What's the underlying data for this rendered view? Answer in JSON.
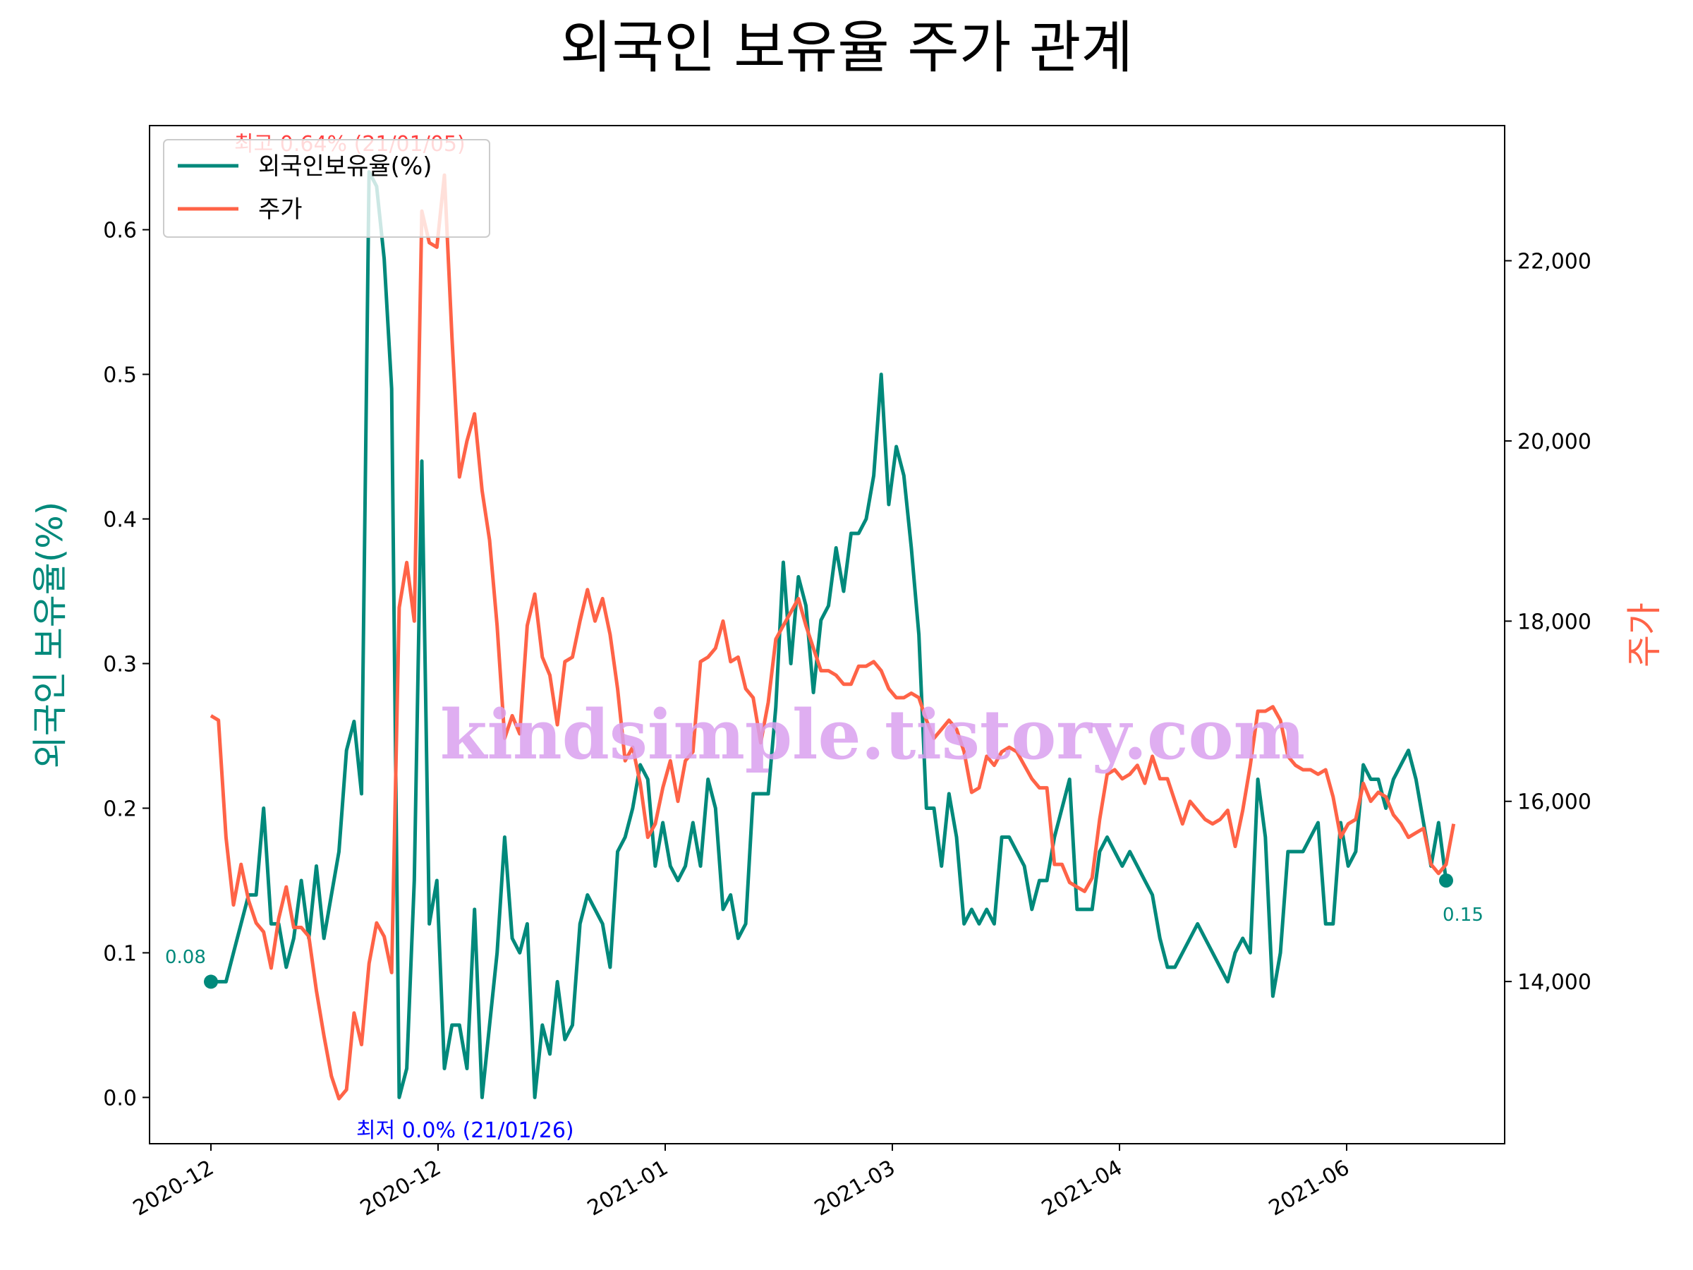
{
  "colors": {
    "ratio": "#00897b",
    "price": "#ff6347",
    "high_annotation": "#ff0000",
    "low_annotation": "#0000ff",
    "watermark": "#d9a0ee",
    "axis": "#000000"
  },
  "chart_data": {
    "type": "line",
    "title": "외국인 보유율 주가 관계",
    "ylabel_left": "외국인 보유율(%)",
    "ylabel_right": "주가",
    "x_tick_labels": [
      "2020-12",
      "2020-12",
      "2021-01",
      "2021-03",
      "2021-04",
      "2021-06"
    ],
    "y_left_ticks": [
      "0.0",
      "0.1",
      "0.2",
      "0.3",
      "0.4",
      "0.5",
      "0.6"
    ],
    "y_right_ticks": [
      "14,000",
      "16,000",
      "18,000",
      "20,000",
      "22,000"
    ],
    "ylim_left": [
      -0.032,
      0.672
    ],
    "ylim_right": [
      12200,
      23500
    ],
    "legend_position": "upper-left",
    "grid": false,
    "series": [
      {
        "name": "외국인보유율(%)",
        "axis": "left",
        "values": [
          0.08,
          0.08,
          0.08,
          0.1,
          0.12,
          0.14,
          0.14,
          0.2,
          0.12,
          0.12,
          0.09,
          0.11,
          0.15,
          0.11,
          0.16,
          0.11,
          0.14,
          0.17,
          0.24,
          0.26,
          0.21,
          0.64,
          0.63,
          0.58,
          0.49,
          0.0,
          0.02,
          0.15,
          0.44,
          0.12,
          0.15,
          0.02,
          0.05,
          0.05,
          0.02,
          0.13,
          0.0,
          0.05,
          0.1,
          0.18,
          0.11,
          0.1,
          0.12,
          0.0,
          0.05,
          0.03,
          0.08,
          0.04,
          0.05,
          0.12,
          0.14,
          0.13,
          0.12,
          0.09,
          0.17,
          0.18,
          0.2,
          0.23,
          0.22,
          0.16,
          0.19,
          0.16,
          0.15,
          0.16,
          0.19,
          0.16,
          0.22,
          0.2,
          0.13,
          0.14,
          0.11,
          0.12,
          0.21,
          0.21,
          0.21,
          0.27,
          0.37,
          0.3,
          0.36,
          0.34,
          0.28,
          0.33,
          0.34,
          0.38,
          0.35,
          0.39,
          0.39,
          0.4,
          0.43,
          0.5,
          0.41,
          0.45,
          0.43,
          0.38,
          0.32,
          0.2,
          0.2,
          0.16,
          0.21,
          0.18,
          0.12,
          0.13,
          0.12,
          0.13,
          0.12,
          0.18,
          0.18,
          0.17,
          0.16,
          0.13,
          0.15,
          0.15,
          0.18,
          0.2,
          0.22,
          0.13,
          0.13,
          0.13,
          0.17,
          0.18,
          0.17,
          0.16,
          0.17,
          0.16,
          0.15,
          0.14,
          0.11,
          0.09,
          0.09,
          0.1,
          0.11,
          0.12,
          0.11,
          0.1,
          0.09,
          0.08,
          0.1,
          0.11,
          0.1,
          0.22,
          0.18,
          0.07,
          0.1,
          0.17,
          0.17,
          0.17,
          0.18,
          0.19,
          0.12,
          0.12,
          0.19,
          0.16,
          0.17,
          0.23,
          0.22,
          0.22,
          0.2,
          0.22,
          0.23,
          0.24,
          0.22,
          0.19,
          0.16,
          0.19,
          0.15
        ]
      },
      {
        "name": "주가",
        "axis": "right",
        "values": [
          16950,
          16900,
          15600,
          14850,
          15300,
          14900,
          14650,
          14550,
          14150,
          14700,
          15050,
          14600,
          14600,
          14500,
          13900,
          13400,
          12950,
          12700,
          12800,
          13650,
          13300,
          14200,
          14650,
          14500,
          14100,
          18150,
          18650,
          18000,
          22550,
          22200,
          22150,
          22950,
          21150,
          19600,
          20000,
          20300,
          19450,
          18900,
          17950,
          16700,
          16950,
          16750,
          17950,
          18300,
          17600,
          17400,
          16850,
          17550,
          17600,
          18000,
          18350,
          18000,
          18250,
          17850,
          17250,
          16450,
          16600,
          16200,
          15600,
          15750,
          16150,
          16450,
          16000,
          16450,
          16550,
          17550,
          17600,
          17700,
          18000,
          17550,
          17600,
          17250,
          17150,
          16650,
          17100,
          17800,
          17950,
          18100,
          18250,
          17950,
          17700,
          17450,
          17450,
          17400,
          17300,
          17300,
          17500,
          17500,
          17550,
          17450,
          17250,
          17150,
          17150,
          17200,
          17150,
          16900,
          16700,
          16800,
          16900,
          16800,
          16550,
          16100,
          16150,
          16500,
          16400,
          16550,
          16600,
          16550,
          16400,
          16250,
          16150,
          16150,
          15300,
          15300,
          15100,
          15050,
          15000,
          15150,
          15800,
          16300,
          16350,
          16250,
          16300,
          16400,
          16200,
          16500,
          16250,
          16250,
          16000,
          15750,
          16000,
          15900,
          15800,
          15750,
          15800,
          15900,
          15500,
          15900,
          16400,
          17000,
          17000,
          17050,
          16900,
          16500,
          16400,
          16350,
          16350,
          16300,
          16350,
          16050,
          15600,
          15750,
          15800,
          16200,
          16000,
          16100,
          16050,
          15850,
          15750,
          15600,
          15650,
          15700,
          15300,
          15200,
          15300,
          15750
        ]
      }
    ],
    "annotations": {
      "high_text": "최고 0.64% (21/01/05)",
      "low_text": "최저 0.0% (21/01/26)",
      "start_value": "0.08",
      "end_value": "0.15"
    },
    "watermark": "kindsimple.tistory.com"
  }
}
